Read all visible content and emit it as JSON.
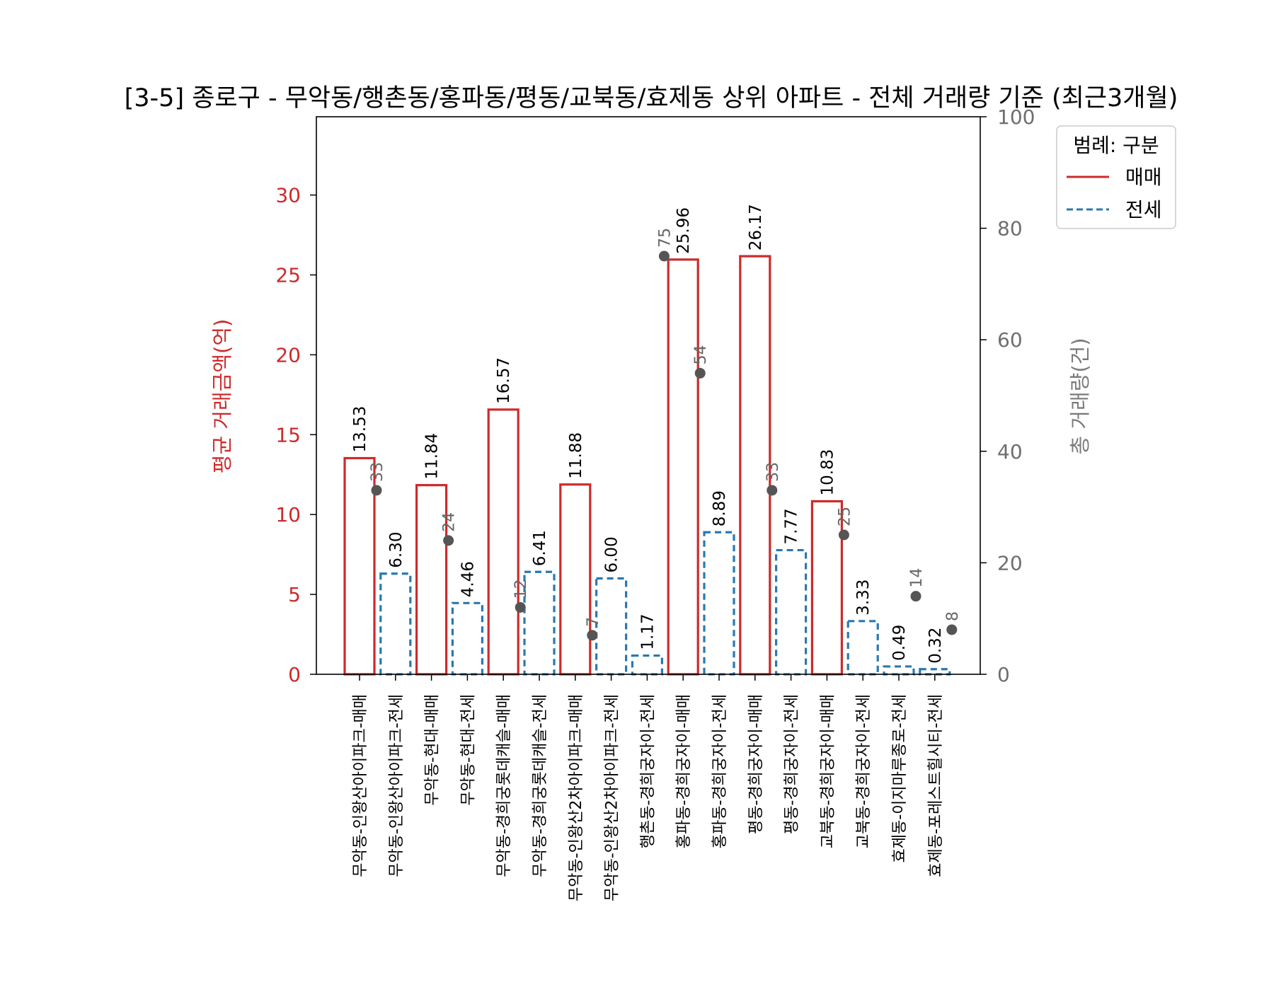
{
  "chart_data": {
    "type": "bar",
    "title": "[3-5] 종로구 - 무악동/행촌동/홍파동/평동/교북동/효제동 상위 아파트 - 전체 거래량 기준 (최근3개월)",
    "ylabel": "평균 거래금액(억)",
    "y2label": "총 거래량(건)",
    "ylim": [
      0,
      34.9
    ],
    "y2lim": [
      0,
      100
    ],
    "yticks": [
      0,
      5,
      10,
      15,
      20,
      25,
      30
    ],
    "y2ticks": [
      0,
      20,
      40,
      60,
      80,
      100
    ],
    "colors": {
      "sale": "#cc2b2b",
      "jeonse": "#2a78b0",
      "count_dot": "#555555"
    },
    "legend": {
      "title": "범례: 구분",
      "position": "top-right",
      "entries": [
        {
          "label": "매매",
          "style": "solid",
          "color": "#cc2b2b"
        },
        {
          "label": "전세",
          "style": "dashed",
          "color": "#2a78b0"
        }
      ]
    },
    "bars": [
      {
        "category": "무악동-인왕산아이파크-매매",
        "type": "sale",
        "value": 13.53,
        "value_label": "13.53",
        "count": 33
      },
      {
        "category": "무악동-인왕산아이파크-전세",
        "type": "jeonse",
        "value": 6.3,
        "value_label": "6.30",
        "count": null
      },
      {
        "category": "무악동-현대-매매",
        "type": "sale",
        "value": 11.84,
        "value_label": "11.84",
        "count": 24
      },
      {
        "category": "무악동-현대-전세",
        "type": "jeonse",
        "value": 4.46,
        "value_label": "4.46",
        "count": null
      },
      {
        "category": "무악동-경희궁롯데캐슬-매매",
        "type": "sale",
        "value": 16.57,
        "value_label": "16.57",
        "count": 12
      },
      {
        "category": "무악동-경희궁롯데캐슬-전세",
        "type": "jeonse",
        "value": 6.41,
        "value_label": "6.41",
        "count": null
      },
      {
        "category": "무악동-인왕산2차아이파크-매매",
        "type": "sale",
        "value": 11.88,
        "value_label": "11.88",
        "count": 7
      },
      {
        "category": "무악동-인왕산2차아이파크-전세",
        "type": "jeonse",
        "value": 6.0,
        "value_label": "6.00",
        "count": null
      },
      {
        "category": "행촌동-경희궁자이-전세",
        "type": "jeonse",
        "value": 1.17,
        "value_label": "1.17",
        "count": 75
      },
      {
        "category": "홍파동-경희궁자이-매매",
        "type": "sale",
        "value": 25.96,
        "value_label": "25.96",
        "count": 54
      },
      {
        "category": "홍파동-경희궁자이-전세",
        "type": "jeonse",
        "value": 8.89,
        "value_label": "8.89",
        "count": null
      },
      {
        "category": "평동-경희궁자이-매매",
        "type": "sale",
        "value": 26.17,
        "value_label": "26.17",
        "count": 33
      },
      {
        "category": "평동-경희궁자이-전세",
        "type": "jeonse",
        "value": 7.77,
        "value_label": "7.77",
        "count": null
      },
      {
        "category": "교북동-경희궁자이-매매",
        "type": "sale",
        "value": 10.83,
        "value_label": "10.83",
        "count": 25
      },
      {
        "category": "교북동-경희궁자이-전세",
        "type": "jeonse",
        "value": 3.33,
        "value_label": "3.33",
        "count": null
      },
      {
        "category": "효제동-이지마루종로-전세",
        "type": "jeonse",
        "value": 0.49,
        "value_label": "0.49",
        "count": 14
      },
      {
        "category": "효제동-포레스트힐시티-전세",
        "type": "jeonse",
        "value": 0.32,
        "value_label": "0.32",
        "count": 8
      }
    ]
  }
}
